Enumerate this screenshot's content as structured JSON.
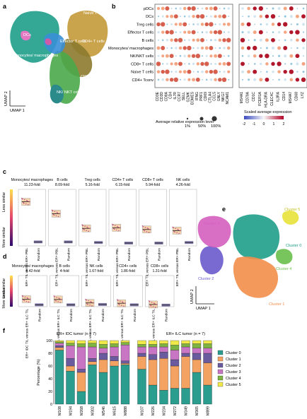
{
  "panels": {
    "a": {
      "label": "a",
      "xlabel": "UMAP 1",
      "ylabel": "UMAP 2",
      "clusters": [
        {
          "name": "pDCs",
          "color": "#c9a0d6"
        },
        {
          "name": "DCs",
          "color": "#e377c2"
        },
        {
          "name": "B cells",
          "color": "#d05aa6"
        },
        {
          "name": "Monocytes/ macrophages",
          "color": "#1f9e89"
        },
        {
          "name": "Effector T cells",
          "color": "#3a8fd6"
        },
        {
          "name": "Naive T cells",
          "color": "#c49a3a"
        },
        {
          "name": "CD4+ T cells",
          "color": "#8c7a2d"
        },
        {
          "name": "CD8+ T cells",
          "color": "#4aa84a"
        },
        {
          "name": "NK/ NKT cells",
          "color": "#2b8a8a"
        },
        {
          "name": "Treg cells",
          "color": "#59b85a"
        }
      ]
    },
    "b": {
      "label": "b",
      "rows": [
        "pDCs",
        "DCs",
        "Treg cells",
        "Effector T cells",
        "B cells",
        "Monocytes/ macrophages",
        "NK/NKT cells",
        "CD8+ T cells",
        "Naive T cells",
        "CD4+ Tconv"
      ],
      "genes_left": [
        "CD3E",
        "CD3D",
        "CD8A",
        "CD4",
        "IL7R",
        "CCR7",
        "SELL",
        "GZMK",
        "EOMES",
        "IFNG",
        "PRF1",
        "CD69",
        "CTLA4",
        "CCL5",
        "GNLY",
        "NKG7",
        "NCAM1"
      ],
      "genes_right": [
        "MS4A1",
        "CD79A",
        "CD1C",
        "FCER1A",
        "HLA-DRA",
        "CLEC4C",
        "IL3RA",
        "CD14",
        "MS4A7",
        "CD68",
        "LYZ"
      ],
      "size_legend_title": "Average relative expression level",
      "size_legend_values": [
        "1%",
        "50%",
        "100%"
      ],
      "color_legend_title": "Scaled average expression",
      "color_legend_ticks": [
        "-2",
        "-1",
        "0",
        "1",
        "2"
      ]
    },
    "c": {
      "label": "c",
      "ylabel_top": "Less similar",
      "ylabel_bottom": "More similar",
      "groups": [
        {
          "title": "Monocytes/ macrophages",
          "fold": "11.23-fold",
          "x1": "ER+ TIL versus ER+ PBL",
          "x2": "Random"
        },
        {
          "title": "B cells",
          "fold": "8.09-fold",
          "x1": "ER+ TIL versus ER+ PBL",
          "x2": "Random"
        },
        {
          "title": "Treg cells",
          "fold": "5.16-fold",
          "x1": "ER+ TIL versus ER+ PBL",
          "x2": "Random"
        },
        {
          "title": "CD4+ T cells",
          "fold": "6.15-fold",
          "x1": "ER+ TIL versus ER+ PBL",
          "x2": "Random"
        },
        {
          "title": "CD8+ T cells",
          "fold": "5.94-fold",
          "x1": "ER+ TIL versus ER+ PBL",
          "x2": "Random"
        },
        {
          "title": "NK cells",
          "fold": "4.26-fold",
          "x1": "ER+ TIL versus ER+ PBL",
          "x2": "Random"
        }
      ]
    },
    "d": {
      "label": "d",
      "ylabel_top": "Less similar",
      "ylabel_bottom": "More similar",
      "groups": [
        {
          "title": "Monocytes/ macrophages",
          "fold": "4.42-fold",
          "x1": "ER+ IDC TIL versus ER+ ILC TIL",
          "x2": "Random"
        },
        {
          "title": "B cells",
          "fold": "4-fold",
          "x1": "ER+ IDC TIL versus ER+ ILC TIL",
          "x2": "Random"
        },
        {
          "title": "NK cells",
          "fold": "1.67-fold",
          "x1": "ER+ IDC TIL versus ER+ ILC TIL",
          "x2": "Random"
        },
        {
          "title": "CD4+ cells",
          "fold": "1.86-fold",
          "x1": "ER+ IDC TIL versus ER+ ILC TIL",
          "x2": "Random"
        },
        {
          "title": "CD8+ cells",
          "fold": "1.31-fold",
          "x1": "ER+ IDC TIL versus ER+ ILC TIL",
          "x2": "Random"
        }
      ]
    },
    "e": {
      "label": "e",
      "xlabel": "UMAP 1",
      "ylabel": "UMAP 2",
      "clusters": [
        {
          "name": "Cluster 0",
          "color": "#1f9e89"
        },
        {
          "name": "Cluster 1",
          "color": "#f28e4a"
        },
        {
          "name": "Cluster 2",
          "color": "#6a5acd"
        },
        {
          "name": "Cluster 3",
          "color": "#d45fbf"
        },
        {
          "name": "Cluster 4",
          "color": "#6abf4b"
        },
        {
          "name": "Cluster 5",
          "color": "#e8e23a"
        }
      ]
    },
    "f": {
      "label": "f",
      "subtitle_left": "ER+ IDC tumor (n = 7)",
      "subtitle_right": "ER+ ILC tumor (n = 7)"
    }
  },
  "chart_data": [
    {
      "type": "scatter",
      "panel": "a",
      "xlabel": "UMAP 1",
      "ylabel": "UMAP 2",
      "series": [
        {
          "name": "pDCs"
        },
        {
          "name": "DCs"
        },
        {
          "name": "B cells"
        },
        {
          "name": "Monocytes/ macrophages"
        },
        {
          "name": "Effector T cells"
        },
        {
          "name": "Naive T cells"
        },
        {
          "name": "CD4+ T cells"
        },
        {
          "name": "CD8+ T cells"
        },
        {
          "name": "NK/ NKT cells"
        },
        {
          "name": "Treg cells"
        }
      ]
    },
    {
      "type": "heatmap",
      "panel": "b",
      "rows": [
        "pDCs",
        "DCs",
        "Treg cells",
        "Effector T cells",
        "B cells",
        "Monocytes/ macrophages",
        "NK/NKT cells",
        "CD8+ T cells",
        "Naive T cells",
        "CD4+ Tconv"
      ],
      "columns": [
        "CD3E",
        "CD3D",
        "CD8A",
        "CD4",
        "IL7R",
        "CCR7",
        "SELL",
        "GZMK",
        "EOMES",
        "IFNG",
        "PRF1",
        "CD69",
        "CTLA4",
        "CCL5",
        "GNLY",
        "NKG7",
        "NCAM1",
        "MS4A1",
        "CD79A",
        "CD1C",
        "FCER1A",
        "HLA-DRA",
        "CLEC4C",
        "IL3RA",
        "CD14",
        "MS4A7",
        "CD68",
        "LYZ"
      ],
      "color_scale": [
        -2,
        2
      ],
      "size_scale": [
        "1%",
        "50%",
        "100%"
      ]
    },
    {
      "type": "box",
      "panel": "c",
      "ylabel": "Similarity",
      "groups": [
        {
          "name": "Monocytes/ macrophages",
          "fold": 11.23,
          "til_vs_pbl": 0.78,
          "random": 0.07
        },
        {
          "name": "B cells",
          "fold": 8.09,
          "til_vs_pbl": 0.57,
          "random": 0.07
        },
        {
          "name": "Treg cells",
          "fold": 5.16,
          "til_vs_pbl": 0.31,
          "random": 0.06
        },
        {
          "name": "CD4+ T cells",
          "fold": 6.15,
          "til_vs_pbl": 0.32,
          "random": 0.05
        },
        {
          "name": "CD8+ T cells",
          "fold": 5.94,
          "til_vs_pbl": 0.29,
          "random": 0.05
        },
        {
          "name": "NK cells",
          "fold": 4.26,
          "til_vs_pbl": 0.27,
          "random": 0.06
        }
      ]
    },
    {
      "type": "box",
      "panel": "d",
      "ylabel": "Similarity",
      "groups": [
        {
          "name": "Monocytes/ macrophages",
          "fold": 4.42,
          "idc_vs_ilc": 0.24,
          "random": 0.06
        },
        {
          "name": "B cells",
          "fold": 4,
          "idc_vs_ilc": 0.23,
          "random": 0.06
        },
        {
          "name": "NK cells",
          "fold": 1.67,
          "idc_vs_ilc": 0.12,
          "random": 0.07
        },
        {
          "name": "CD4+ cells",
          "fold": 1.86,
          "idc_vs_ilc": 0.11,
          "random": 0.06
        },
        {
          "name": "CD8+ cells",
          "fold": 1.31,
          "idc_vs_ilc": 0.07,
          "random": 0.05
        }
      ]
    },
    {
      "type": "bar",
      "panel": "f",
      "stacked": true,
      "ylabel": "Percentage (%)",
      "ylim": [
        0,
        100
      ],
      "categories": [
        "M108",
        "M194",
        "M268",
        "M302",
        "M546",
        "M615",
        "M888",
        "M107",
        "M226",
        "M234",
        "M272",
        "M349",
        "M365",
        "M899"
      ],
      "series": [
        {
          "name": "Cluster 0",
          "color": "#2a9d8f",
          "values": [
            85,
            52,
            20,
            62,
            50,
            60,
            62,
            55,
            30,
            22,
            25,
            25,
            50,
            30
          ]
        },
        {
          "name": "Cluster 1",
          "color": "#f4a261",
          "values": [
            4,
            8,
            30,
            5,
            20,
            8,
            2,
            20,
            40,
            50,
            35,
            50,
            20,
            35
          ]
        },
        {
          "name": "Cluster 2",
          "color": "#6a5a9e",
          "values": [
            3,
            12,
            5,
            5,
            10,
            7,
            4,
            5,
            8,
            10,
            10,
            5,
            10,
            15
          ]
        },
        {
          "name": "Cluster 3",
          "color": "#c875c4",
          "values": [
            4,
            20,
            35,
            18,
            8,
            15,
            25,
            10,
            12,
            8,
            15,
            10,
            8,
            8
          ]
        },
        {
          "name": "Cluster 4",
          "color": "#7cb342",
          "values": [
            2,
            4,
            5,
            6,
            6,
            5,
            4,
            4,
            4,
            5,
            8,
            5,
            7,
            7
          ]
        },
        {
          "name": "Cluster 5",
          "color": "#f1e84a",
          "values": [
            2,
            4,
            5,
            4,
            6,
            5,
            3,
            6,
            6,
            5,
            7,
            5,
            5,
            5
          ]
        }
      ]
    }
  ]
}
